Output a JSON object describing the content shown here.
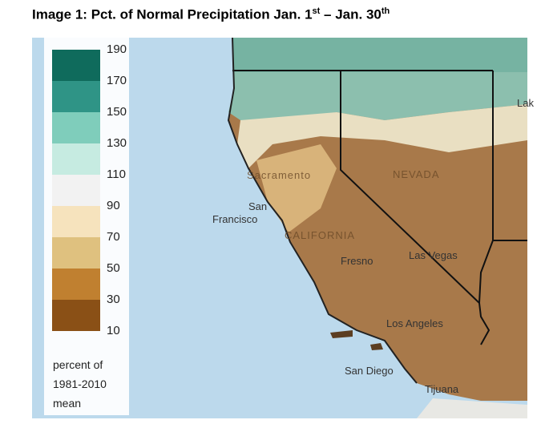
{
  "title": {
    "main": "Image 1: Pct. of Normal Precipitation Jan. 1",
    "sup1": "st",
    "mid": " – Jan. 30",
    "sup2": "th"
  },
  "legend": {
    "ticks": [
      190,
      170,
      150,
      130,
      110,
      90,
      70,
      50,
      30,
      10
    ],
    "colors": [
      "#0f6b5c",
      "#2f9486",
      "#7fcdbb",
      "#c6ebe1",
      "#f2f2f2",
      "#f6e3bd",
      "#dfc17f",
      "#c08030",
      "#8a5016"
    ],
    "caption": [
      "percent of",
      "1981-2010",
      "mean"
    ]
  },
  "places": [
    "Sacramento",
    "San",
    "Francisco",
    "NEVADA",
    "CALIFORNIA",
    "Fresno",
    "Las Vegas",
    "Los Angeles",
    "San Diego",
    "Tijuana",
    "Lak"
  ]
}
